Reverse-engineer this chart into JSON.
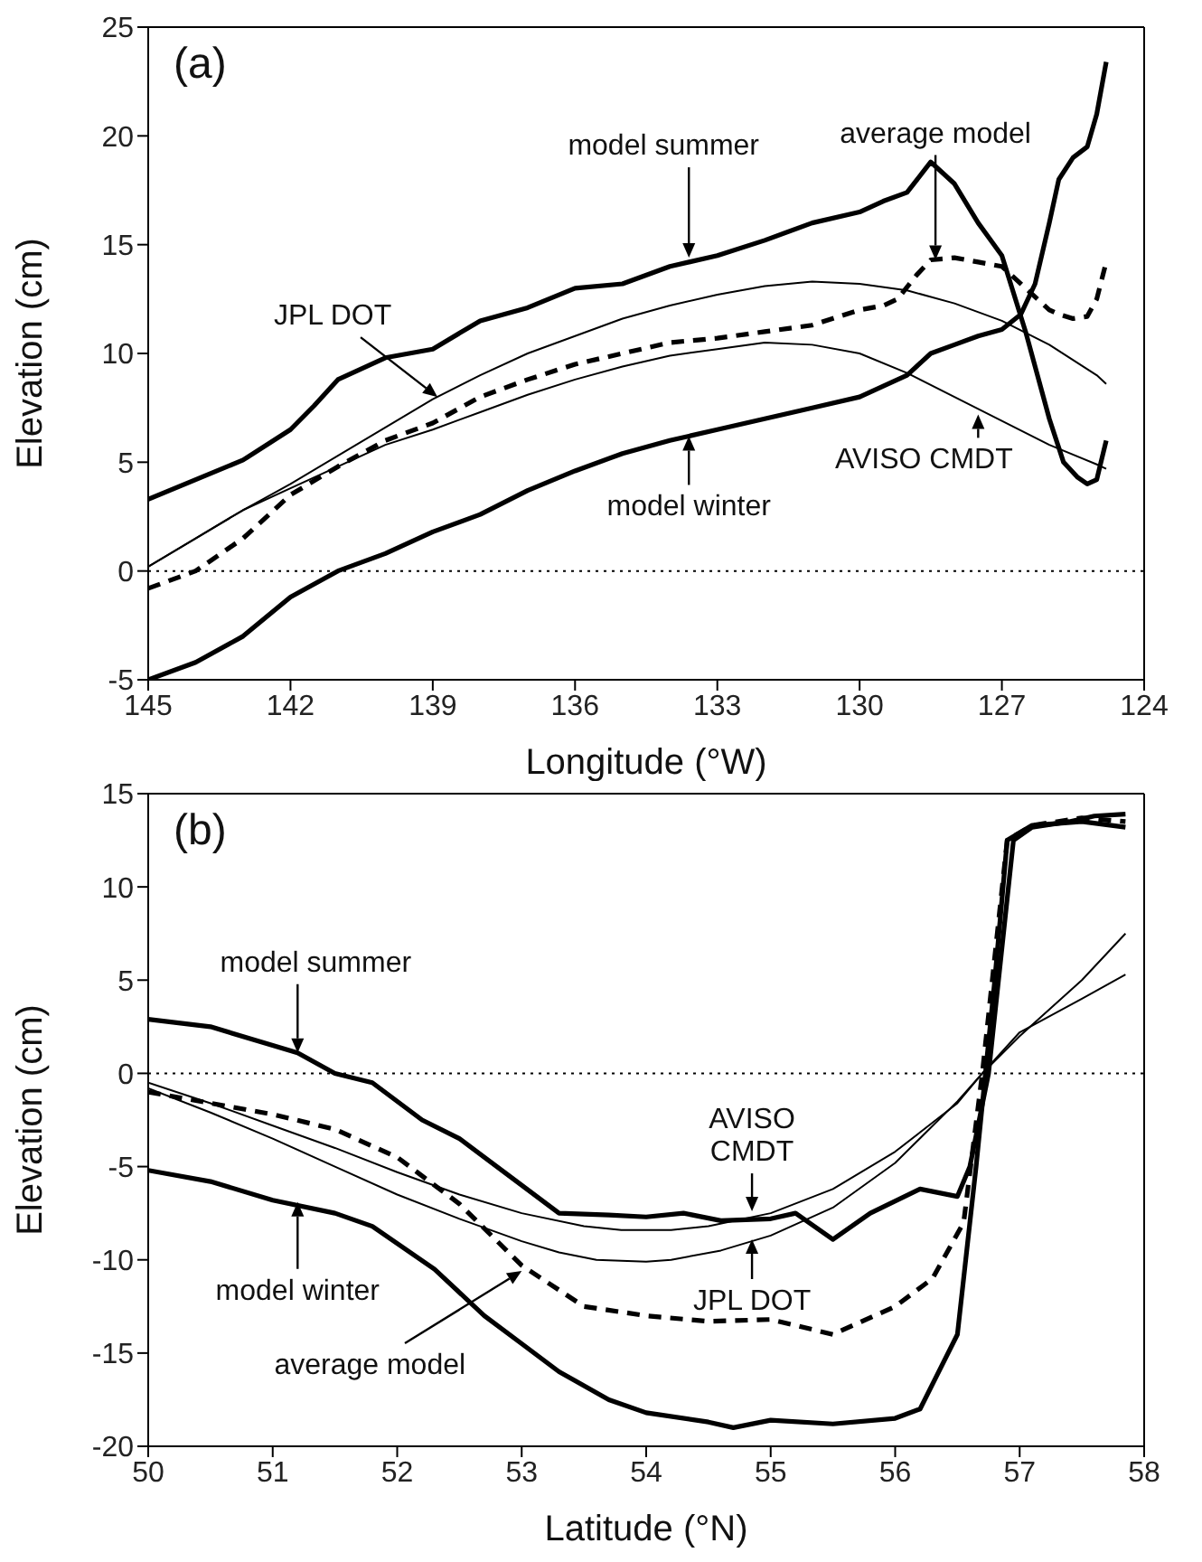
{
  "chart_data": [
    {
      "type": "line",
      "xlabel": "Longitude (°W)",
      "ylabel": "Elevation (cm)",
      "xlim": [
        145,
        124
      ],
      "xticks": [
        145,
        142,
        139,
        136,
        133,
        130,
        127,
        124
      ],
      "ylim": [
        -5,
        25
      ],
      "yticks": [
        -5,
        0,
        5,
        10,
        15,
        20,
        25
      ],
      "marker": "none",
      "series": [
        {
          "color": "#000000",
          "line_style": "solid",
          "x": [
            145,
            144,
            143,
            142,
            141.5,
            141,
            140,
            139,
            138,
            137,
            136,
            135,
            134,
            133,
            132,
            131,
            130,
            129.5,
            129,
            128.5,
            128,
            127.5,
            127,
            126.5,
            126,
            125.7,
            125.4,
            125.2,
            125,
            124.8
          ],
          "values": [
            3.3,
            4.2,
            5.1,
            6.5,
            7.6,
            8.8,
            9.8,
            10.2,
            11.5,
            12.1,
            13,
            13.2,
            14,
            14.5,
            15.2,
            16,
            16.5,
            17,
            17.4,
            18.8,
            17.8,
            16,
            14.5,
            11,
            7,
            5,
            4.3,
            4,
            4.2,
            6
          ]
        },
        {
          "color": "#000000",
          "line_style": "solid",
          "x": [
            145,
            144,
            143,
            142,
            141,
            140,
            139,
            138,
            137,
            136,
            135,
            134,
            133,
            132,
            131,
            130,
            129,
            128.5,
            128,
            127.5,
            127,
            126.6,
            126.3,
            126,
            125.8,
            125.5,
            125.2,
            125,
            124.8
          ],
          "values": [
            -5,
            -4.2,
            -3,
            -1.2,
            0,
            0.8,
            1.8,
            2.6,
            3.7,
            4.6,
            5.4,
            6,
            6.5,
            7,
            7.5,
            8,
            9,
            10,
            10.4,
            10.8,
            11.1,
            11.8,
            13.2,
            16,
            18,
            19,
            19.5,
            21,
            23.4
          ]
        },
        {
          "color": "#000000",
          "line_style": "dashed",
          "x": [
            145,
            144,
            143,
            142,
            141,
            140,
            139,
            138,
            137,
            136,
            135,
            134,
            133,
            132,
            131,
            130,
            129.5,
            129.2,
            128.8,
            128.5,
            128,
            127.5,
            127,
            126.5,
            126,
            125.8,
            125.5,
            125.2,
            125,
            124.8
          ],
          "values": [
            -0.8,
            0,
            1.5,
            3.5,
            4.8,
            6,
            6.8,
            8,
            8.8,
            9.5,
            10,
            10.5,
            10.7,
            11,
            11.3,
            12,
            12.2,
            12.5,
            13.6,
            14.3,
            14.4,
            14.2,
            14,
            13,
            12,
            11.8,
            11.6,
            11.7,
            12.5,
            14.2
          ]
        },
        {
          "color": "#000000",
          "line_style": "solid",
          "x": [
            145,
            144,
            143,
            142,
            141,
            140,
            139,
            138,
            137,
            136,
            135,
            134,
            133,
            132,
            131,
            130,
            129,
            128,
            127,
            126,
            125,
            124.8
          ],
          "values": [
            0.2,
            1.5,
            2.8,
            4,
            5.3,
            6.6,
            7.9,
            9,
            10,
            10.8,
            11.6,
            12.2,
            12.7,
            13.1,
            13.3,
            13.2,
            12.9,
            12.3,
            11.5,
            10.4,
            9,
            8.6
          ]
        },
        {
          "color": "#000000",
          "line_style": "solid",
          "x": [
            145,
            144,
            143,
            142,
            141,
            140,
            139,
            138,
            137,
            136,
            135,
            134,
            133,
            132,
            131,
            130,
            129,
            128,
            127,
            126,
            125,
            124.8
          ],
          "values": [
            0.2,
            1.5,
            2.8,
            3.8,
            4.8,
            5.8,
            6.5,
            7.3,
            8.1,
            8.8,
            9.4,
            9.9,
            10.2,
            10.5,
            10.4,
            10,
            9.1,
            8,
            6.9,
            5.8,
            4.9,
            4.7
          ]
        }
      ],
      "ref_lines": [
        {
          "axis": "y",
          "value": 0,
          "line_style": "dotted",
          "color": "#000000"
        }
      ],
      "annotations": [
        "(a)",
        {
          "text": "model summer",
          "x": 133.6,
          "y": 14.4
        },
        {
          "text": "JPL DOT",
          "x": 138.9,
          "y": 8
        },
        {
          "text": "average model",
          "x": 128.4,
          "y": 14.3
        },
        {
          "text": "model winter",
          "x": 133.6,
          "y": 6.2
        },
        {
          "text": "AVISO CMDT",
          "x": 127.5,
          "y": 7.2
        }
      ]
    },
    {
      "type": "line",
      "xlabel": "Latitude (°N)",
      "ylabel": "Elevation (cm)",
      "xlim": [
        50,
        58
      ],
      "xticks": [
        50,
        51,
        52,
        53,
        54,
        55,
        56,
        57,
        58
      ],
      "ylim": [
        -20,
        15
      ],
      "yticks": [
        -20,
        -15,
        -10,
        -5,
        0,
        5,
        10,
        15
      ],
      "marker": "none",
      "series": [
        {
          "color": "#000000",
          "line_style": "solid",
          "x": [
            50,
            50.5,
            51,
            51.2,
            51.5,
            51.8,
            52.2,
            52.5,
            52.9,
            53.3,
            53.7,
            54,
            54.3,
            54.6,
            55,
            55.2,
            55.5,
            55.8,
            56.2,
            56.5,
            56.6,
            56.75,
            56.95,
            57.1,
            57.4,
            57.6,
            57.85
          ],
          "values": [
            2.9,
            2.5,
            1.5,
            1.1,
            0,
            -0.5,
            -2.5,
            -3.5,
            -5.5,
            -7.5,
            -7.6,
            -7.7,
            -7.5,
            -7.9,
            -7.8,
            -7.5,
            -8.9,
            -7.5,
            -6.2,
            -6.6,
            -5,
            0,
            12.5,
            13.2,
            13.5,
            13.8,
            13.9
          ]
        },
        {
          "color": "#000000",
          "line_style": "solid",
          "x": [
            50,
            50.5,
            51,
            51.5,
            51.8,
            52.3,
            52.7,
            53,
            53.3,
            53.7,
            54,
            54.5,
            54.7,
            55,
            55.5,
            56,
            56.2,
            56.5,
            56.65,
            56.8,
            56.9,
            57.1,
            57.5,
            57.85
          ],
          "values": [
            -5.2,
            -5.8,
            -6.8,
            -7.5,
            -8.2,
            -10.5,
            -13,
            -14.5,
            -16,
            -17.5,
            -18.2,
            -18.7,
            -19,
            -18.6,
            -18.8,
            -18.5,
            -18,
            -14,
            -5,
            5,
            12.5,
            13.3,
            13.5,
            13.2
          ]
        },
        {
          "color": "#000000",
          "line_style": "dashed",
          "x": [
            50,
            51,
            51.5,
            52,
            52.5,
            53,
            53.5,
            54,
            54.5,
            55,
            55.5,
            56,
            56.3,
            56.55,
            56.7,
            56.9,
            57.1,
            57.5,
            57.85
          ],
          "values": [
            -1,
            -2.2,
            -3,
            -4.5,
            -7,
            -10.3,
            -12.5,
            -13,
            -13.3,
            -13.2,
            -14,
            -12.5,
            -11,
            -8,
            0,
            12.5,
            13.3,
            13.7,
            13.5
          ]
        },
        {
          "color": "#000000",
          "line_style": "solid",
          "x": [
            50,
            50.5,
            51,
            51.5,
            52,
            52.5,
            53,
            53.5,
            53.8,
            54.2,
            54.5,
            55,
            55.5,
            56,
            56.5,
            56.7,
            57,
            57.5,
            57.85
          ],
          "values": [
            -0.5,
            -1.6,
            -2.8,
            -4,
            -5.3,
            -6.5,
            -7.5,
            -8.2,
            -8.4,
            -8.4,
            -8.2,
            -7.5,
            -6.2,
            -4.2,
            -1.6,
            0,
            2.2,
            4,
            5.3
          ]
        },
        {
          "color": "#000000",
          "line_style": "solid",
          "x": [
            50,
            50.5,
            51,
            51.5,
            52,
            52.5,
            53,
            53.3,
            53.6,
            54,
            54.2,
            54.6,
            55,
            55.5,
            56,
            56.5,
            56.7,
            57,
            57.5,
            57.85
          ],
          "values": [
            -0.8,
            -2.1,
            -3.5,
            -5,
            -6.5,
            -7.8,
            -9,
            -9.6,
            -10,
            -10.1,
            -10,
            -9.5,
            -8.7,
            -7.2,
            -4.8,
            -1.5,
            0,
            2,
            5,
            7.5
          ]
        }
      ],
      "ref_lines": [
        {
          "axis": "y",
          "value": 0,
          "line_style": "dotted",
          "color": "#000000"
        }
      ],
      "annotations": [
        "(b)",
        {
          "text": "model summer",
          "x": 51.2,
          "y": 1.1
        },
        {
          "text": "model winter",
          "x": 51.2,
          "y": -6.9
        },
        {
          "text": "average model",
          "x": 53,
          "y": -10.6
        },
        {
          "text": "AVISO CMDT",
          "x": 54.85,
          "y": -7.4
        },
        {
          "text": "JPL DOT",
          "x": 54.85,
          "y": -8.9
        }
      ]
    }
  ]
}
